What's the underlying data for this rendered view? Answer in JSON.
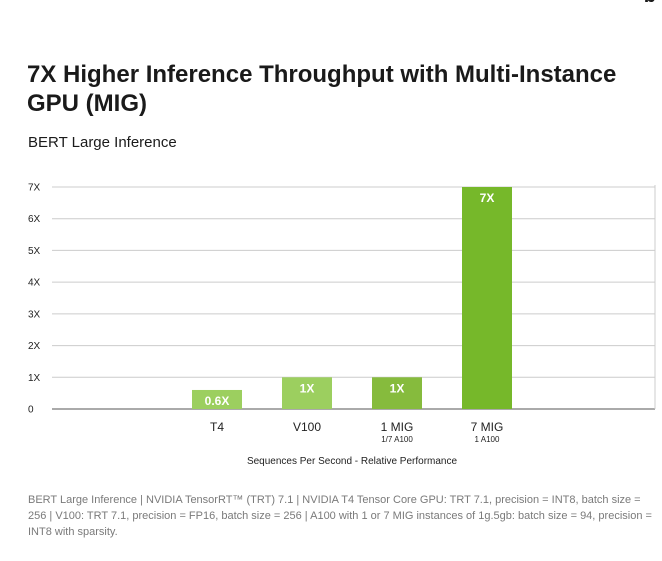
{
  "title": "7X Higher Inference Throughput with Multi-Instance GPU (MIG)",
  "subtitle": "BERT Large Inference",
  "colors": {
    "bar_light": "#9ccf5f",
    "bar_mid": "#86bb3d",
    "bar_dark": "#76b82a",
    "grid": "#cccccc",
    "axis": "#555555",
    "label_text": "#ffffff"
  },
  "chart_data": {
    "type": "bar",
    "categories": [
      "",
      "T4",
      "V100",
      "1 MIG",
      "7 MIG"
    ],
    "category_sublabels": [
      "",
      "",
      "",
      "1/7 A100",
      "1 A100"
    ],
    "values": [
      null,
      0.6,
      1,
      1,
      7
    ],
    "data_labels": [
      "",
      "0.6X",
      "1X",
      "1X",
      "7X"
    ],
    "bar_colors": [
      "",
      "#9ccf5f",
      "#9ccf5f",
      "#86bb3d",
      "#76b82a"
    ],
    "yticks": [
      0,
      1,
      2,
      3,
      4,
      5,
      6,
      7
    ],
    "ytick_labels": [
      "0",
      "1X",
      "2X",
      "3X",
      "4X",
      "5X",
      "6X",
      "7X"
    ],
    "ylim": [
      0,
      7
    ],
    "xlabel": "Sequences Per Second - Relative Performance",
    "ylabel": "",
    "grid": true
  },
  "footnote": "BERT Large Inference | NVIDIA TensorRT™ (TRT) 7.1 | NVIDIA T4 Tensor Core GPU: TRT 7.1, precision = INT8, batch size = 256 | V100: TRT 7.1, precision = FP16, batch size = 256 | A100 with 1 or 7 MIG instances of 1g.5gb: batch size = 94, precision = INT8 with sparsity."
}
